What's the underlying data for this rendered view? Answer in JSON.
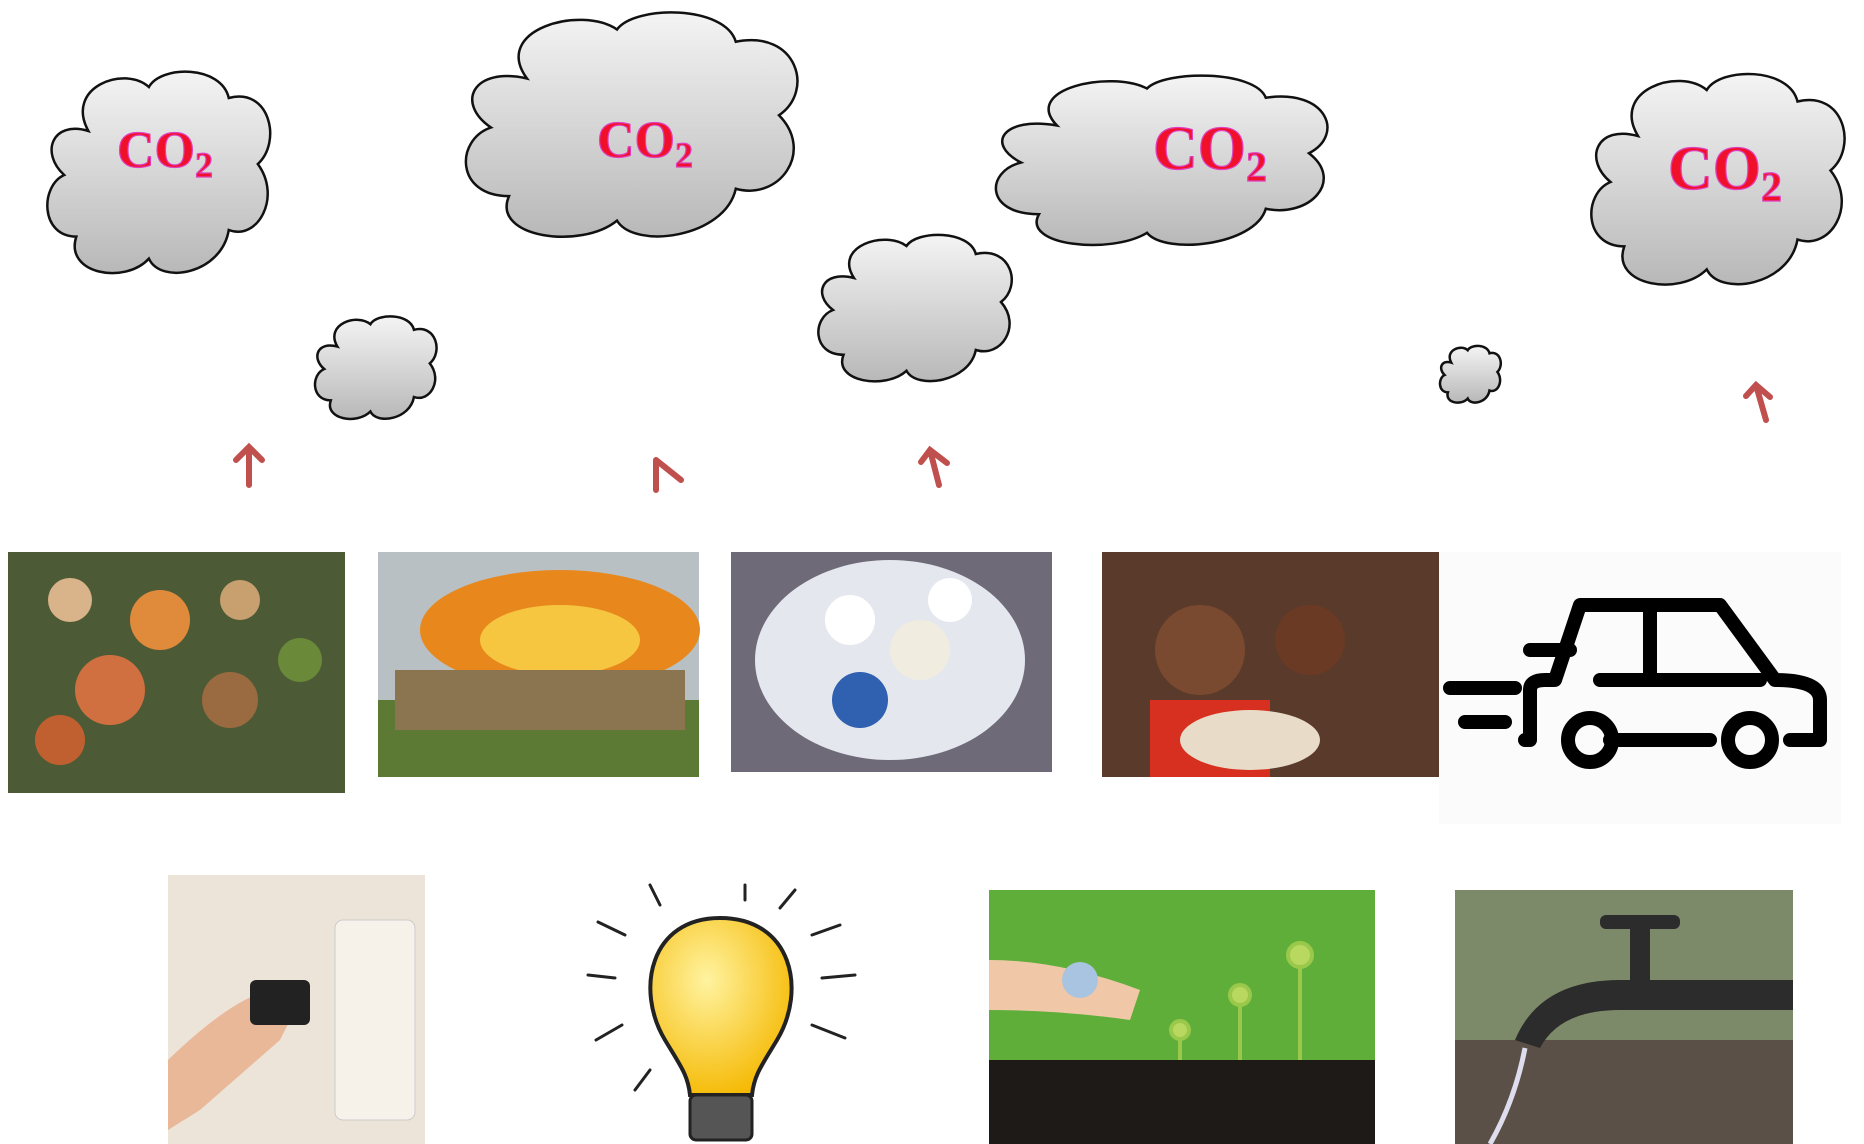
{
  "clouds": [
    {
      "text": "CO",
      "subscript": "2"
    },
    {
      "text": "CO",
      "subscript": "2"
    },
    {
      "text": "CO",
      "subscript": "2"
    },
    {
      "text": "CO",
      "subscript": "2"
    }
  ]
}
